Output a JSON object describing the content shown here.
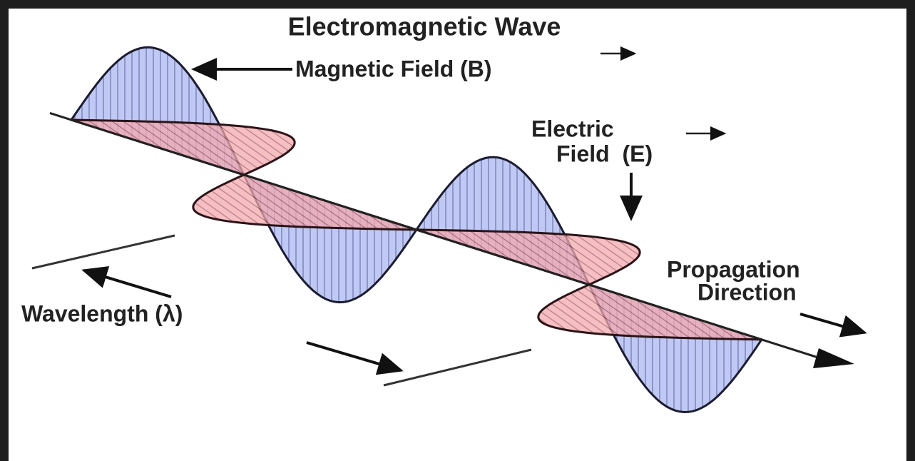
{
  "title": "Electromagnetic Wave",
  "magnetic_label": "Magnetic Field (B)",
  "electric_label": [
    "Electric",
    "Field  (E)"
  ],
  "propagation_label": [
    "Propagation",
    "Direction"
  ],
  "wavelength_label": "Wavelength (λ)"
}
